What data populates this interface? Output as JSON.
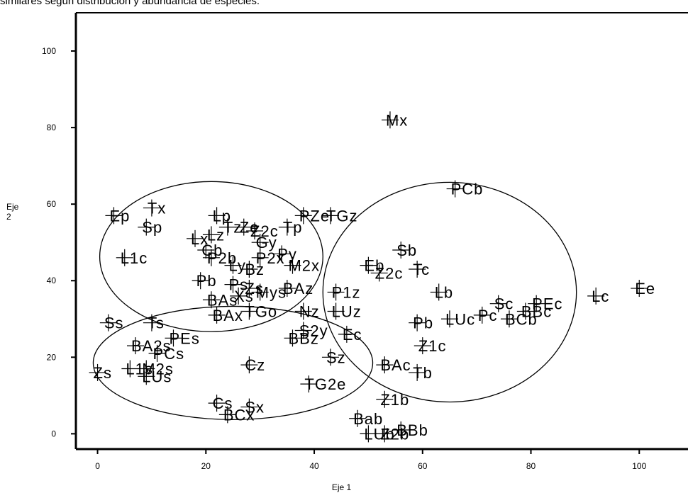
{
  "caption": "similares según distribución y abundancia de especies.",
  "chart_data": {
    "type": "scatter",
    "xlabel": "Eje 1",
    "ylabel": "Eje 2",
    "ylabel_lines": [
      "Eje",
      "2"
    ],
    "xlim": [
      -4,
      109
    ],
    "ylim": [
      -4,
      110
    ],
    "xticks": [
      0,
      20,
      40,
      60,
      80,
      100
    ],
    "yticks": [
      0,
      20,
      40,
      60,
      80,
      100
    ],
    "marker": "plus",
    "points": [
      {
        "label": "Mx",
        "x": 54,
        "y": 82
      },
      {
        "label": "PCb",
        "x": 66,
        "y": 64
      },
      {
        "label": "Tx",
        "x": 10,
        "y": 59
      },
      {
        "label": "Ep",
        "x": 3,
        "y": 57
      },
      {
        "label": "Sp",
        "x": 9,
        "y": 54
      },
      {
        "label": "Lp",
        "x": 22,
        "y": 57
      },
      {
        "label": "PZe",
        "x": 38,
        "y": 57
      },
      {
        "label": "TGz",
        "x": 43,
        "y": 57
      },
      {
        "label": "Tp",
        "x": 35,
        "y": 54
      },
      {
        "label": "Tz",
        "x": 24,
        "y": 54
      },
      {
        "label": "Ze",
        "x": 27,
        "y": 54
      },
      {
        "label": "Z2c",
        "x": 29,
        "y": 53
      },
      {
        "label": "Lx",
        "x": 18,
        "y": 51
      },
      {
        "label": "Lz",
        "x": 21,
        "y": 52
      },
      {
        "label": "Gy",
        "x": 30,
        "y": 50
      },
      {
        "label": "Cb",
        "x": 20,
        "y": 48
      },
      {
        "label": "L1c",
        "x": 5,
        "y": 46
      },
      {
        "label": "P2b",
        "x": 21,
        "y": 46
      },
      {
        "label": "P2x",
        "x": 30,
        "y": 46
      },
      {
        "label": "Py",
        "x": 34,
        "y": 47
      },
      {
        "label": "M2x",
        "x": 36,
        "y": 44
      },
      {
        "label": "Bz",
        "x": 28,
        "y": 43
      },
      {
        "label": "Ly",
        "x": 25,
        "y": 44
      },
      {
        "label": "Eb",
        "x": 50,
        "y": 44
      },
      {
        "label": "Sb",
        "x": 56,
        "y": 48
      },
      {
        "label": "Z2c",
        "x": 52,
        "y": 42
      },
      {
        "label": "Tc",
        "x": 59,
        "y": 43
      },
      {
        "label": "Pb",
        "x": 19,
        "y": 40
      },
      {
        "label": "BAs",
        "x": 21,
        "y": 35
      },
      {
        "label": "Zs",
        "x": 28,
        "y": 38
      },
      {
        "label": "Ps",
        "x": 25,
        "y": 39
      },
      {
        "label": "Mys",
        "x": 30,
        "y": 37
      },
      {
        "label": "Xs",
        "x": 26,
        "y": 36
      },
      {
        "label": "BAz",
        "x": 35,
        "y": 38
      },
      {
        "label": "P1z",
        "x": 44,
        "y": 37
      },
      {
        "label": "Lb",
        "x": 63,
        "y": 37
      },
      {
        "label": "Sc",
        "x": 74,
        "y": 34
      },
      {
        "label": "PEc",
        "x": 81,
        "y": 34
      },
      {
        "label": "Ee",
        "x": 100,
        "y": 38
      },
      {
        "label": "Lc",
        "x": 92,
        "y": 36
      },
      {
        "label": "Pc",
        "x": 71,
        "y": 31
      },
      {
        "label": "BBc",
        "x": 79,
        "y": 32
      },
      {
        "label": "BCb",
        "x": 76,
        "y": 30
      },
      {
        "label": "Ss",
        "x": 2,
        "y": 29
      },
      {
        "label": "Ts",
        "x": 10,
        "y": 29
      },
      {
        "label": "BAx",
        "x": 22,
        "y": 31
      },
      {
        "label": "TGo",
        "x": 28,
        "y": 32
      },
      {
        "label": "Nz",
        "x": 38,
        "y": 32
      },
      {
        "label": "LUz",
        "x": 44,
        "y": 32
      },
      {
        "label": "Pb",
        "x": 59,
        "y": 29
      },
      {
        "label": "LUc",
        "x": 65,
        "y": 30
      },
      {
        "label": "S2y",
        "x": 38,
        "y": 27
      },
      {
        "label": "Ec",
        "x": 46,
        "y": 26
      },
      {
        "label": "PEs",
        "x": 14,
        "y": 25
      },
      {
        "label": "BA2s",
        "x": 7,
        "y": 23
      },
      {
        "label": "BBz",
        "x": 36,
        "y": 25
      },
      {
        "label": "Z1c",
        "x": 60,
        "y": 23
      },
      {
        "label": "PCs",
        "x": 11,
        "y": 21
      },
      {
        "label": "L1s",
        "x": 6,
        "y": 17
      },
      {
        "label": "M2s",
        "x": 9,
        "y": 17
      },
      {
        "label": "Sz",
        "x": 43,
        "y": 20
      },
      {
        "label": "BAc",
        "x": 53,
        "y": 18
      },
      {
        "label": "Cz",
        "x": 28,
        "y": 18
      },
      {
        "label": "Zs",
        "x": 0,
        "y": 16
      },
      {
        "label": "LUs",
        "x": 9,
        "y": 15
      },
      {
        "label": "Tb",
        "x": 59,
        "y": 16
      },
      {
        "label": "TG2e",
        "x": 39,
        "y": 13
      },
      {
        "label": "Z1b",
        "x": 53,
        "y": 9
      },
      {
        "label": "Cs",
        "x": 22,
        "y": 8
      },
      {
        "label": "Sx",
        "x": 28,
        "y": 7
      },
      {
        "label": "BCx",
        "x": 24,
        "y": 5
      },
      {
        "label": "Bab",
        "x": 48,
        "y": 4
      },
      {
        "label": "LUb",
        "x": 50,
        "y": 0
      },
      {
        "label": "Z2b",
        "x": 53,
        "y": 0
      },
      {
        "label": "BBb",
        "x": 56,
        "y": 1
      }
    ],
    "ellipses": [
      {
        "cx": 21,
        "cy": 46.3,
        "rx": 20.6,
        "ry": 19.6
      },
      {
        "cx": 65,
        "cy": 37,
        "rx": 23.4,
        "ry": 28.7
      },
      {
        "cx": 25,
        "cy": 18.5,
        "rx": 25.8,
        "ry": 14.8
      }
    ]
  }
}
